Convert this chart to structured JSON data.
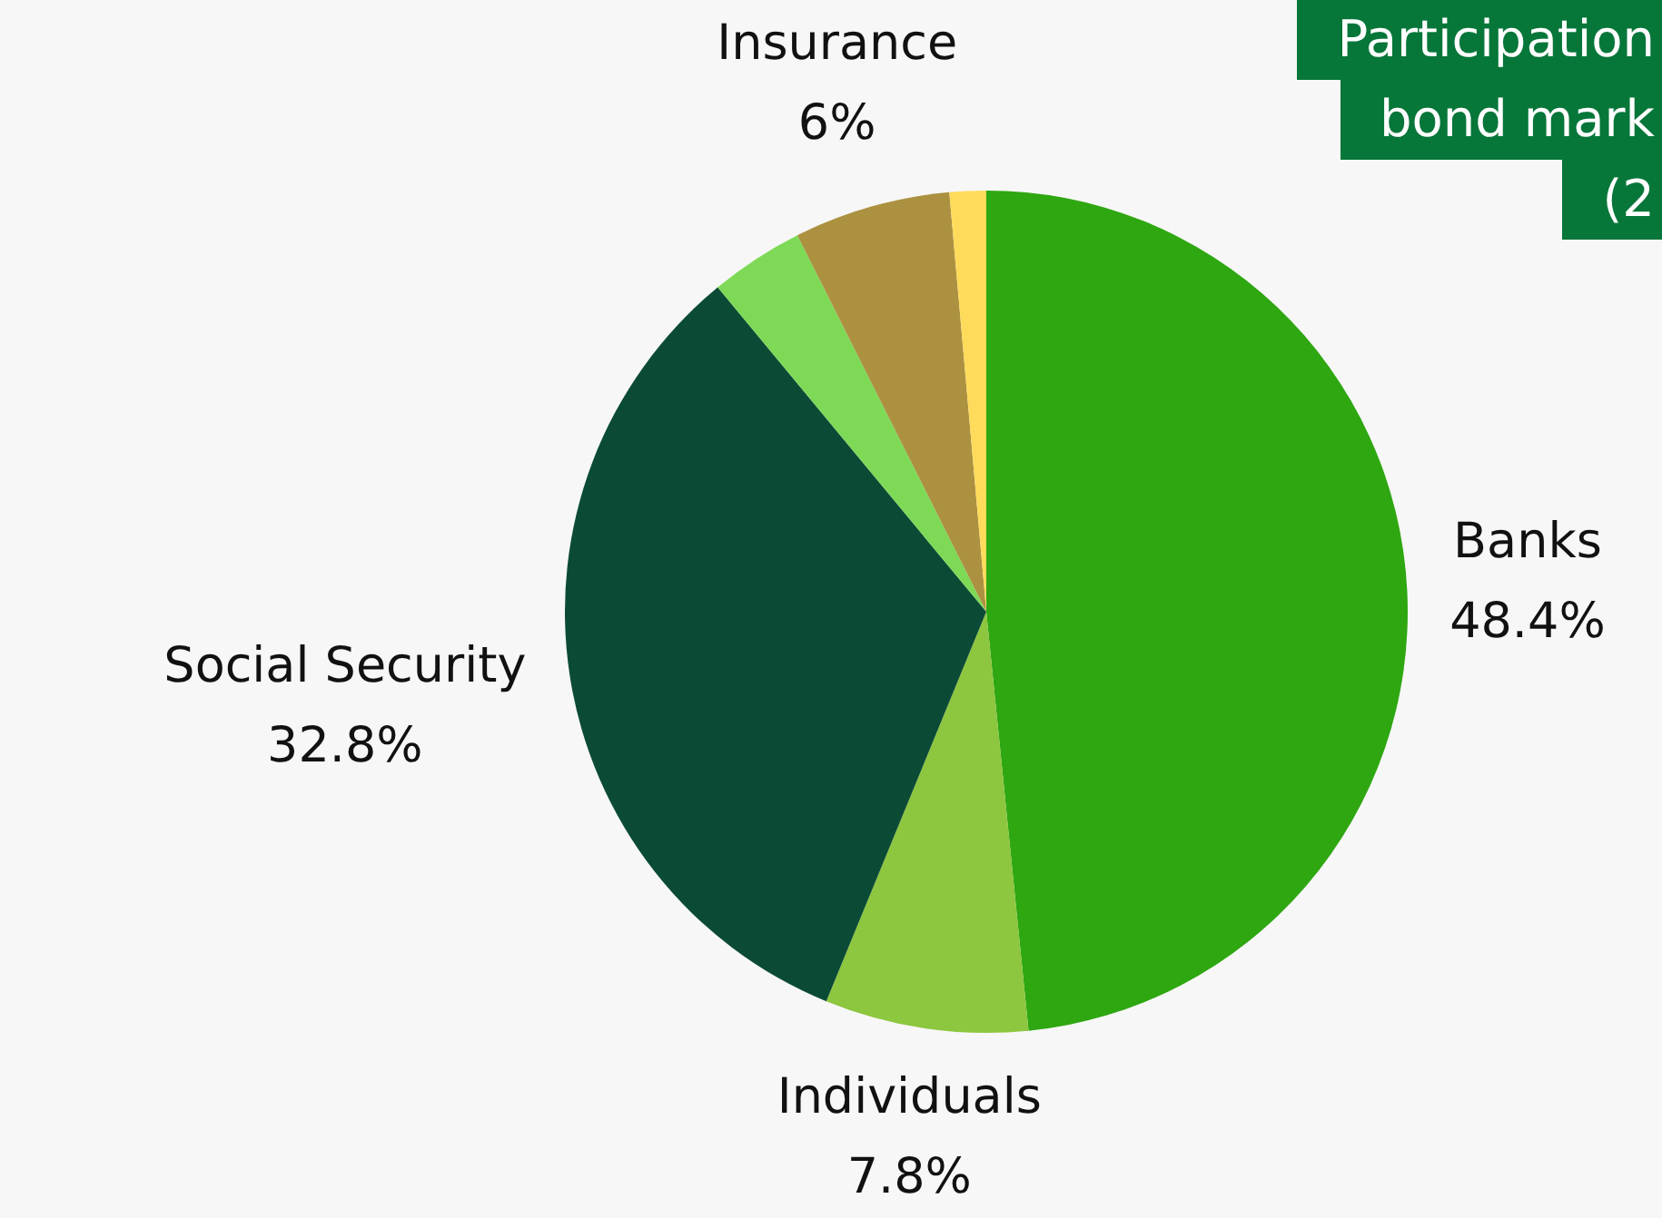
{
  "chart_data": {
    "type": "pie",
    "title": "Participation\nbond mark\n(2",
    "categories": [
      "Banks",
      "Individuals",
      "Social Security",
      null,
      "Insurance",
      null
    ],
    "values": [
      48.4,
      7.8,
      32.8,
      3.6,
      6,
      1.4
    ],
    "colors": [
      "#2ea711",
      "#8dc63f",
      "#0b4b35",
      "#7ed957",
      "#ab9140",
      "#ffdb5b"
    ],
    "value_labels": [
      "48.4%",
      "7.8%",
      "32.8%",
      null,
      "6%",
      null
    ],
    "legend": false
  }
}
